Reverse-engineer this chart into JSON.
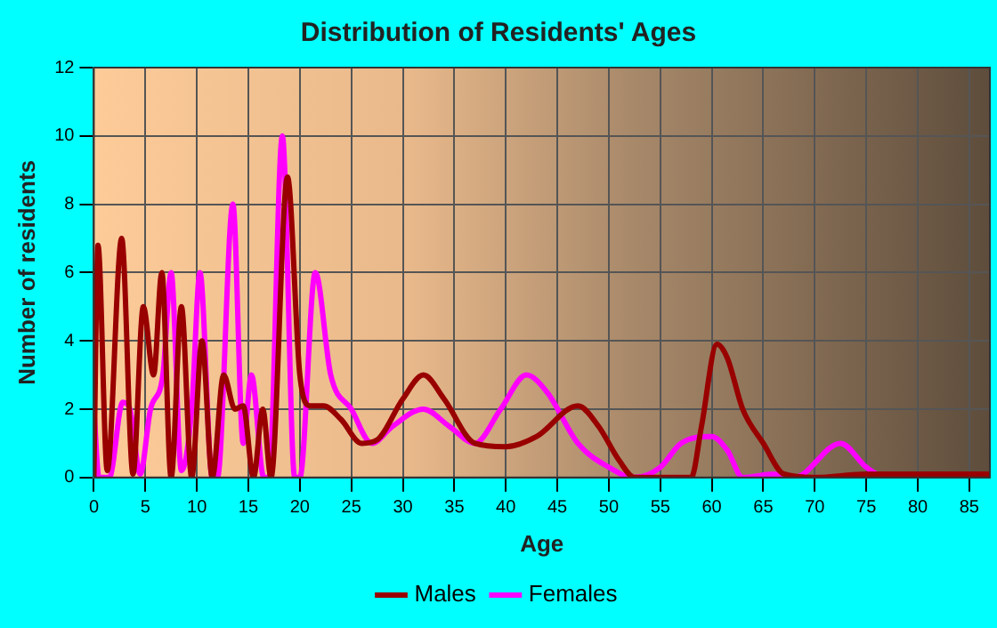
{
  "chart_data": {
    "type": "line",
    "title": "Distribution of Residents' Ages",
    "xlabel": "Age",
    "ylabel": "Number of residents",
    "xlim": [
      0,
      87
    ],
    "xticks": [
      0,
      5,
      10,
      15,
      20,
      25,
      30,
      35,
      40,
      45,
      50,
      55,
      60,
      65,
      70,
      75,
      80,
      85
    ],
    "ylim": [
      0,
      12
    ],
    "yticks": [
      0,
      2,
      4,
      6,
      8,
      10,
      12
    ],
    "grid": true,
    "legend": "bottom",
    "marker": "none",
    "line_style": "solid",
    "series": [
      {
        "name": "Males",
        "color": "#990000",
        "x": [
          0,
          0.4,
          1.3,
          2.7,
          3.8,
          4.8,
          5.8,
          6.6,
          7.5,
          8.5,
          9.5,
          10.5,
          11.5,
          12.6,
          13.7,
          14.5,
          15.5,
          16.4,
          17.2,
          18.8,
          20,
          21,
          22.3,
          24,
          26,
          27.5,
          30,
          32,
          34,
          37,
          40,
          43,
          47,
          49,
          51,
          52.5,
          58,
          59,
          60.5,
          61.5,
          63,
          65,
          67,
          70,
          75,
          87
        ],
        "values": [
          0,
          6.8,
          0.2,
          7,
          0.1,
          5,
          3,
          6,
          0,
          5,
          0,
          4,
          0,
          3,
          2,
          2.1,
          0,
          2,
          0,
          8.8,
          3,
          2.1,
          2.1,
          1.7,
          1,
          1.1,
          2.3,
          3,
          2.3,
          1,
          0.9,
          1.2,
          2.1,
          1.5,
          0.5,
          0,
          0,
          1.5,
          3.9,
          3.5,
          2,
          1,
          0.1,
          0,
          0.1,
          0.1
        ]
      },
      {
        "name": "Females",
        "color": "#ff00ff",
        "x": [
          0,
          0.5,
          1.5,
          2.8,
          3.5,
          4.5,
          5.5,
          6.7,
          7.5,
          8.5,
          9.5,
          10.3,
          11.5,
          12,
          13.5,
          14.5,
          15.3,
          16.5,
          17,
          18.3,
          19.5,
          20,
          21.5,
          23,
          25,
          27,
          29,
          32,
          34.5,
          37,
          39.5,
          42,
          44,
          47,
          50,
          52.5,
          55,
          57,
          60,
          61.5,
          63,
          66,
          68,
          72.5,
          75,
          77,
          87
        ],
        "values": [
          2,
          0,
          0,
          2.2,
          2,
          0.1,
          2,
          3,
          6,
          0.2,
          2,
          6,
          0,
          0,
          8,
          1,
          3,
          0,
          0,
          10,
          0,
          0,
          6,
          3,
          2,
          1,
          1.5,
          2,
          1.5,
          1,
          2,
          3,
          2.5,
          1,
          0.3,
          0,
          0.3,
          1,
          1.2,
          0.8,
          0,
          0.1,
          0,
          1,
          0.3,
          0,
          0
        ]
      }
    ]
  }
}
